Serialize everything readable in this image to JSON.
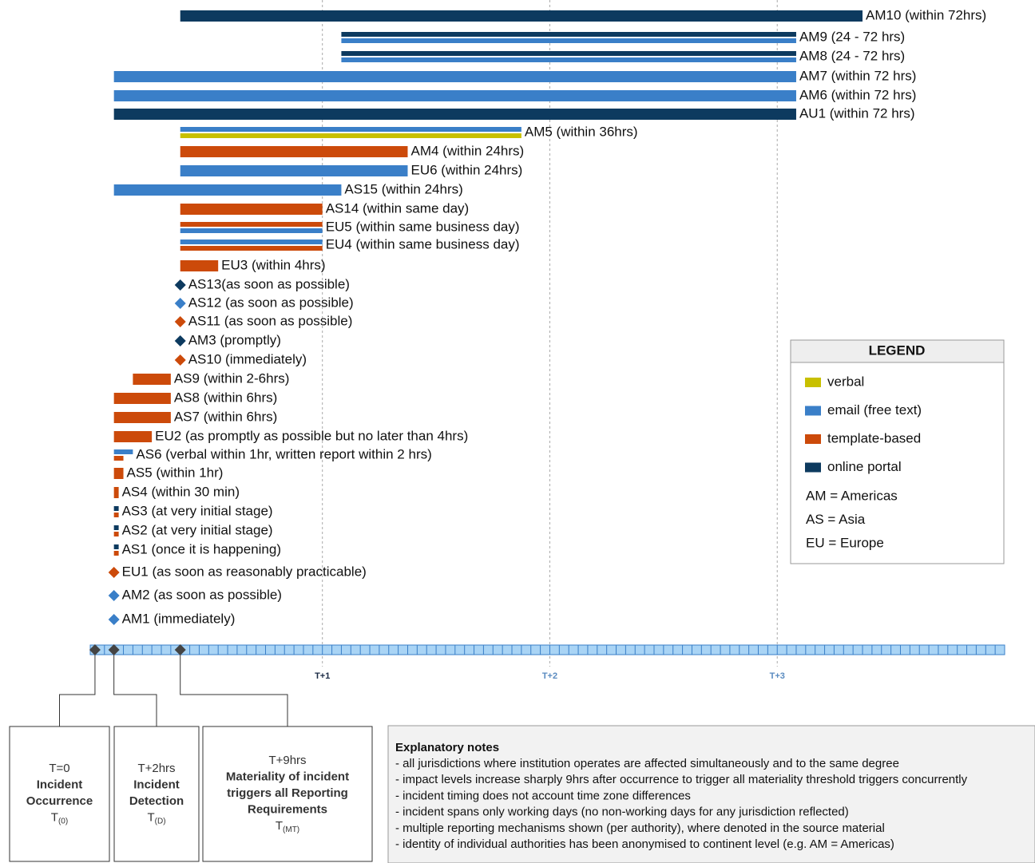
{
  "chart_data": {
    "type": "timeline",
    "xlim": [
      -0.5,
      96
    ],
    "xticks": [
      {
        "value": 24,
        "label": "T+1"
      },
      {
        "value": 48,
        "label": "T+2"
      },
      {
        "value": 72,
        "label": "T+3"
      }
    ],
    "rows": [
      {
        "label": "AM10 (within 72hrs)",
        "segments": [
          {
            "color": "#0d3a5f",
            "start": 9,
            "end": 81
          }
        ]
      },
      {
        "label": "AM9 (24 - 72 hrs)",
        "segments": [
          {
            "color": "#0d3a5f",
            "start": 26,
            "end": 74
          },
          {
            "color": "#3a7fc8",
            "start": 26,
            "end": 74
          }
        ]
      },
      {
        "label": "AM8 (24 - 72 hrs)",
        "segments": [
          {
            "color": "#0d3a5f",
            "start": 26,
            "end": 74
          },
          {
            "color": "#3a7fc8",
            "start": 26,
            "end": 74
          }
        ]
      },
      {
        "label": "AM7 (within 72 hrs)",
        "segments": [
          {
            "color": "#3a7fc8",
            "start": 2,
            "end": 74
          }
        ]
      },
      {
        "label": "AM6 (within 72 hrs)",
        "segments": [
          {
            "color": "#3a7fc8",
            "start": 2,
            "end": 74
          }
        ]
      },
      {
        "label": "AU1 (within 72 hrs)",
        "segments": [
          {
            "color": "#0d3a5f",
            "start": 2,
            "end": 74
          }
        ]
      },
      {
        "label": "AM5 (within 36hrs)",
        "segments": [
          {
            "color": "#3a7fc8",
            "start": 9,
            "end": 45
          },
          {
            "color": "#c8c000",
            "start": 9,
            "end": 45
          }
        ]
      },
      {
        "label": "AM4 (within 24hrs)",
        "segments": [
          {
            "color": "#cc4a0a",
            "start": 9,
            "end": 33
          }
        ]
      },
      {
        "label": "EU6 (within 24hrs)",
        "segments": [
          {
            "color": "#3a7fc8",
            "start": 9,
            "end": 33
          }
        ]
      },
      {
        "label": "AS15 (within 24hrs)",
        "segments": [
          {
            "color": "#3a7fc8",
            "start": 2,
            "end": 26
          }
        ]
      },
      {
        "label": "AS14 (within same day)",
        "segments": [
          {
            "color": "#cc4a0a",
            "start": 9,
            "end": 24
          }
        ]
      },
      {
        "label": "EU5 (within same business day)",
        "segments": [
          {
            "color": "#cc4a0a",
            "start": 9,
            "end": 24
          },
          {
            "color": "#3a7fc8",
            "start": 9,
            "end": 24
          }
        ]
      },
      {
        "label": "EU4 (within same business day)",
        "segments": [
          {
            "color": "#3a7fc8",
            "start": 9,
            "end": 24
          },
          {
            "color": "#cc4a0a",
            "start": 9,
            "end": 24
          }
        ]
      },
      {
        "label": "EU3 (within 4hrs)",
        "segments": [
          {
            "color": "#cc4a0a",
            "start": 9,
            "end": 13
          }
        ]
      },
      {
        "label": "AS13(as soon as possible)",
        "point": {
          "color": "#0d3a5f",
          "at": 9
        }
      },
      {
        "label": "AS12 (as soon as possible)",
        "point": {
          "color": "#3a7fc8",
          "at": 9
        }
      },
      {
        "label": "AS11  (as soon as possible)",
        "point": {
          "color": "#cc4a0a",
          "at": 9
        }
      },
      {
        "label": "AM3 (promptly)",
        "point": {
          "color": "#0d3a5f",
          "at": 9
        }
      },
      {
        "label": "AS10 (immediately)",
        "point": {
          "color": "#cc4a0a",
          "at": 9
        }
      },
      {
        "label": "AS9 (within 2-6hrs)",
        "segments": [
          {
            "color": "#cc4a0a",
            "start": 4,
            "end": 8
          }
        ]
      },
      {
        "label": "AS8 (within 6hrs)",
        "segments": [
          {
            "color": "#cc4a0a",
            "start": 2,
            "end": 8
          }
        ]
      },
      {
        "label": "AS7 (within 6hrs)",
        "segments": [
          {
            "color": "#cc4a0a",
            "start": 2,
            "end": 8
          }
        ]
      },
      {
        "label": "EU2 (as promptly as possible but no later than 4hrs)",
        "segments": [
          {
            "color": "#cc4a0a",
            "start": 2,
            "end": 6
          }
        ]
      },
      {
        "label": "AS6 (verbal within 1hr, written report within 2 hrs)",
        "segments": [
          {
            "color": "#3a7fc8",
            "start": 2,
            "end": 4
          },
          {
            "color": "#cc4a0a",
            "start": 2,
            "end": 3
          }
        ]
      },
      {
        "label": "AS5 (within 1hr)",
        "segments": [
          {
            "color": "#cc4a0a",
            "start": 2,
            "end": 3
          }
        ]
      },
      {
        "label": "AS4 (within 30 min)",
        "segments": [
          {
            "color": "#cc4a0a",
            "start": 2,
            "end": 2.5
          }
        ]
      },
      {
        "label": "AS3 (at very initial stage)",
        "segments": [
          {
            "color": "#0d3a5f",
            "start": 2,
            "end": 2.5
          },
          {
            "color": "#cc4a0a",
            "start": 2,
            "end": 2.5
          }
        ]
      },
      {
        "label": "AS2 (at very initial stage)",
        "segments": [
          {
            "color": "#0d3a5f",
            "start": 2,
            "end": 2.5
          },
          {
            "color": "#cc4a0a",
            "start": 2,
            "end": 2.5
          }
        ]
      },
      {
        "label": "AS1 (once it is happening)",
        "segments": [
          {
            "color": "#0d3a5f",
            "start": 2,
            "end": 2.5
          },
          {
            "color": "#cc4a0a",
            "start": 2,
            "end": 2.5
          }
        ]
      },
      {
        "label": "EU1 (as soon as reasonably practicable)",
        "point": {
          "color": "#cc4a0a",
          "at": 2
        }
      },
      {
        "label": "AM2 (as soon as possible)",
        "point": {
          "color": "#3a7fc8",
          "at": 2
        }
      },
      {
        "label": "AM1 (immediately)",
        "point": {
          "color": "#3a7fc8",
          "at": 2
        }
      }
    ],
    "events": [
      {
        "at": 0,
        "time": "T=0",
        "title": [
          "Incident",
          "Occurrence"
        ],
        "symbol": "T",
        "sub": "(0)"
      },
      {
        "at": 2,
        "time": "T+2hrs",
        "title": [
          "Incident",
          "Detection"
        ],
        "symbol": "T",
        "sub": "(D)"
      },
      {
        "at": 9,
        "time": "T+9hrs",
        "title": [
          "Materiality of incident",
          "triggers all Reporting",
          "Requirements"
        ],
        "symbol": "T",
        "sub": "(MT)"
      }
    ],
    "legend": {
      "title": "LEGEND",
      "items": [
        {
          "label": "verbal",
          "color": "#c8c000"
        },
        {
          "label": "email (free text)",
          "color": "#3a7fc8"
        },
        {
          "label": "template-based",
          "color": "#cc4a0a"
        },
        {
          "label": "online portal",
          "color": "#0d3a5f"
        }
      ],
      "abbreviations": [
        "AM = Americas",
        "AS = Asia",
        "EU = Europe"
      ]
    },
    "notes": {
      "title": "Explanatory notes",
      "lines": [
        "- all jurisdictions where institution operates are affected simultaneously and to the same degree",
        "- impact levels increase sharply 9hrs after occurrence to trigger all materiality threshold triggers concurrently",
        "- incident timing does not account time zone differences",
        "- incident spans only working days (no non-working days for any jurisdiction reflected)",
        "- multiple reporting mechanisms shown (per authority), where denoted in the source material",
        "- identity of individual authorities has been anonymised to continent level (e.g. AM = Americas)"
      ]
    }
  }
}
